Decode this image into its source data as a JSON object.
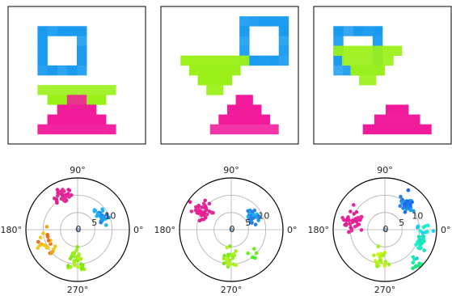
{
  "figure": {
    "panel_count": 3,
    "shape_colors": {
      "square": "#1a9bf0",
      "triangle_down": "#9bf01a",
      "triangle_up": "#f01a9b"
    }
  },
  "chart_data": [
    {
      "type": "image",
      "panel": 1,
      "grid_size": 14,
      "shapes": [
        {
          "kind": "square-ring",
          "color": "#1a9bf0",
          "col0": 3,
          "row0": 2,
          "size": 5,
          "hole": 3
        },
        {
          "kind": "triangle-down",
          "color": "#9bf01a",
          "col0": 3,
          "row0": 8,
          "width": 8,
          "height": 4
        },
        {
          "kind": "triangle-up",
          "color": "#f01a9b",
          "col0": 3,
          "row0": 9,
          "width": 8,
          "height": 4
        }
      ]
    },
    {
      "type": "image",
      "panel": 2,
      "grid_size": 14,
      "shapes": [
        {
          "kind": "square-ring",
          "color": "#1a9bf0",
          "col0": 8,
          "row0": 1,
          "size": 5,
          "hole": 3
        },
        {
          "kind": "triangle-down",
          "color": "#9bf01a",
          "col0": 2,
          "row0": 5,
          "width": 7,
          "height": 4
        },
        {
          "kind": "triangle-up",
          "color": "#f01a9b",
          "col0": 5,
          "row0": 9,
          "width": 7,
          "height": 4
        }
      ]
    },
    {
      "type": "image",
      "panel": 3,
      "grid_size": 14,
      "shapes": [
        {
          "kind": "square-ring",
          "color": "#1a9bf0",
          "col0": 2,
          "row0": 2,
          "size": 5,
          "hole": 3
        },
        {
          "kind": "triangle-down",
          "color": "#9bf01a",
          "col0": 2,
          "row0": 4,
          "width": 7,
          "height": 4
        },
        {
          "kind": "triangle-up",
          "color": "#f01a9b",
          "col0": 5,
          "row0": 10,
          "width": 7,
          "height": 3
        }
      ]
    },
    {
      "type": "scatter",
      "polar": true,
      "panel": 1,
      "r_ticks": [
        0,
        5,
        10
      ],
      "r_max": 15,
      "theta_ticks": [
        "0°",
        "90°",
        "180°",
        "270°"
      ],
      "clusters": [
        {
          "theta": 115,
          "theta_spread": 8,
          "r": 11,
          "r_spread": 2.2,
          "n": 34,
          "colors": [
            "#e62e9b",
            "#f01a9b",
            "#d9268f"
          ]
        },
        {
          "theta": 28,
          "theta_spread": 9,
          "r": 8,
          "r_spread": 1.8,
          "n": 30,
          "colors": [
            "#1a9bf0",
            "#2a7fe6",
            "#1ab6f0"
          ]
        },
        {
          "theta": 268,
          "theta_spread": 7,
          "r": 9,
          "r_spread": 3.5,
          "n": 32,
          "colors": [
            "#9bf01a",
            "#7fe61a",
            "#b6f01a"
          ]
        },
        {
          "theta": 205,
          "theta_spread": 14,
          "r": 10,
          "r_spread": 2.5,
          "n": 22,
          "colors": [
            "#f0a01a",
            "#f06a1a",
            "#f0c81a"
          ]
        }
      ]
    },
    {
      "type": "scatter",
      "polar": true,
      "panel": 2,
      "r_ticks": [
        0,
        5,
        10
      ],
      "r_max": 15,
      "theta_ticks": [
        "0°",
        "90°",
        "180°",
        "270°"
      ],
      "clusters": [
        {
          "theta": 148,
          "theta_spread": 9,
          "r": 10,
          "r_spread": 2.3,
          "n": 38,
          "colors": [
            "#f01a9b",
            "#e62e9b",
            "#d9268f"
          ]
        },
        {
          "theta": 35,
          "theta_spread": 8,
          "r": 7,
          "r_spread": 1.8,
          "n": 32,
          "colors": [
            "#1a9bf0",
            "#2a7fe6",
            "#1ab6f0"
          ]
        },
        {
          "theta": 268,
          "theta_spread": 6,
          "r": 8,
          "r_spread": 3.2,
          "n": 26,
          "colors": [
            "#9bf01a",
            "#b6f01a",
            "#7fe61a"
          ]
        },
        {
          "theta": 310,
          "theta_spread": 5,
          "r": 10,
          "r_spread": 1.5,
          "n": 5,
          "colors": [
            "#4af01a",
            "#6af01a"
          ]
        }
      ]
    },
    {
      "type": "scatter",
      "polar": true,
      "panel": 3,
      "r_ticks": [
        0,
        5,
        10
      ],
      "r_max": 15,
      "theta_ticks": [
        "0°",
        "90°",
        "180°",
        "270°"
      ],
      "clusters": [
        {
          "theta": 165,
          "theta_spread": 7,
          "r": 10,
          "r_spread": 2.5,
          "n": 38,
          "colors": [
            "#f01a9b",
            "#e62e9b",
            "#d9268f"
          ]
        },
        {
          "theta": 50,
          "theta_spread": 8,
          "r": 10,
          "r_spread": 2.2,
          "n": 36,
          "colors": [
            "#1a6af0",
            "#1a9bf0",
            "#2a7fe6"
          ]
        },
        {
          "theta": 340,
          "theta_spread": 16,
          "r": 11,
          "r_spread": 2.0,
          "n": 30,
          "colors": [
            "#1af0d0",
            "#1ae6b0",
            "#1acdf0"
          ]
        },
        {
          "theta": 312,
          "theta_spread": 6,
          "r": 14,
          "r_spread": 1.2,
          "n": 8,
          "colors": [
            "#1ae67f",
            "#1af09b"
          ]
        },
        {
          "theta": 262,
          "theta_spread": 6,
          "r": 9,
          "r_spread": 3.0,
          "n": 20,
          "colors": [
            "#b6f01a",
            "#9bf01a",
            "#cdf01a"
          ]
        }
      ]
    }
  ]
}
